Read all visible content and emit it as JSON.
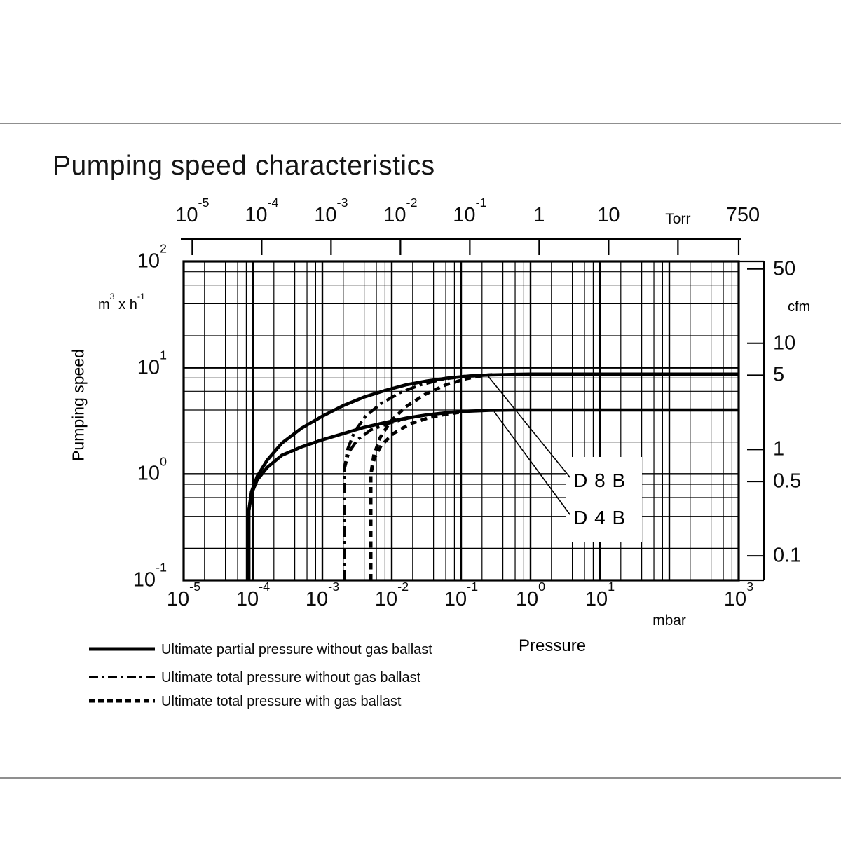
{
  "title": "Pumping speed characteristics",
  "chart_data": {
    "type": "line",
    "title": "Pumping speed characteristics",
    "grid": {
      "scale": "log-log",
      "minor_multiples": [
        2,
        4,
        6,
        8
      ]
    },
    "x_axis": {
      "label": "Pressure",
      "unit": "mbar",
      "scale": "log",
      "range_mbar": [
        1e-05,
        1000
      ],
      "ticks": [
        {
          "value": 1e-05,
          "label": "10^-5"
        },
        {
          "value": 0.0001,
          "label": "10^-4"
        },
        {
          "value": 0.001,
          "label": "10^-3"
        },
        {
          "value": 0.01,
          "label": "10^-2"
        },
        {
          "value": 0.1,
          "label": "10^-1"
        },
        {
          "value": 1,
          "label": "10^0"
        },
        {
          "value": 10,
          "label": "10^1"
        },
        {
          "value": 100,
          "label": "mbar",
          "is_unit": true
        },
        {
          "value": 1000,
          "label": "10^3"
        }
      ]
    },
    "x_axis_top": {
      "unit": "Torr",
      "scale": "log",
      "mbar_per_torr": 1.3332,
      "ticks": [
        {
          "value": 1e-05,
          "label": "10^-5"
        },
        {
          "value": 0.0001,
          "label": "10^-4"
        },
        {
          "value": 0.001,
          "label": "10^-3"
        },
        {
          "value": 0.01,
          "label": "10^-2"
        },
        {
          "value": 0.1,
          "label": "10^-1"
        },
        {
          "value": 1,
          "label": "1"
        },
        {
          "value": 10,
          "label": "10"
        },
        {
          "value": 100,
          "label": "Torr",
          "is_unit": true
        },
        {
          "value": 750,
          "label": "750",
          "dx": 6
        }
      ]
    },
    "y_axis": {
      "label": "Pumping speed",
      "unit": "m^3 x h^-1",
      "scale": "log",
      "range_m3h": [
        0.1,
        100
      ],
      "ticks": [
        {
          "value": 100,
          "label": "10^2"
        },
        {
          "value": 10,
          "label": "10^1"
        },
        {
          "value": 1,
          "label": "10^0"
        },
        {
          "value": 0.1,
          "label": "10^-1"
        }
      ]
    },
    "y_axis_right": {
      "unit": "cfm",
      "m3h_per_cfm": 1.699,
      "ticks": [
        {
          "value": 50,
          "label": "50"
        },
        {
          "value": 10,
          "label": "10"
        },
        {
          "value": 5,
          "label": "5"
        },
        {
          "value": 1,
          "label": "1"
        },
        {
          "value": 0.5,
          "label": "0.5"
        },
        {
          "value": 0.1,
          "label": "0.1"
        }
      ]
    },
    "series": [
      {
        "name": "D 8 B ultimate partial pressure without gas ballast",
        "pump": "D 8 B",
        "style": "solid",
        "points": [
          [
            8.7e-05,
            0.1
          ],
          [
            8.7e-05,
            0.45
          ],
          [
            9.5e-05,
            0.68
          ],
          [
            0.000115,
            0.95
          ],
          [
            0.00016,
            1.35
          ],
          [
            0.00026,
            1.95
          ],
          [
            0.0005,
            2.7
          ],
          [
            0.001,
            3.5
          ],
          [
            0.002,
            4.4
          ],
          [
            0.004,
            5.3
          ],
          [
            0.008,
            6.1
          ],
          [
            0.016,
            6.9
          ],
          [
            0.032,
            7.5
          ],
          [
            0.064,
            8.0
          ],
          [
            0.13,
            8.35
          ],
          [
            0.26,
            8.55
          ],
          [
            0.6,
            8.65
          ],
          [
            1,
            8.7
          ],
          [
            1000,
            8.7
          ]
        ]
      },
      {
        "name": "D 4 B ultimate partial pressure without gas ballast",
        "pump": "D 4 B",
        "style": "solid",
        "points": [
          [
            8.7e-05,
            0.1
          ],
          [
            8.7e-05,
            0.45
          ],
          [
            9.5e-05,
            0.65
          ],
          [
            0.000115,
            0.88
          ],
          [
            0.00016,
            1.15
          ],
          [
            0.00026,
            1.5
          ],
          [
            0.0005,
            1.8
          ],
          [
            0.001,
            2.1
          ],
          [
            0.002,
            2.4
          ],
          [
            0.004,
            2.75
          ],
          [
            0.008,
            3.05
          ],
          [
            0.016,
            3.35
          ],
          [
            0.032,
            3.6
          ],
          [
            0.064,
            3.78
          ],
          [
            0.13,
            3.9
          ],
          [
            0.26,
            3.97
          ],
          [
            0.6,
            4.0
          ],
          [
            1,
            4.0
          ],
          [
            1000,
            4.0
          ]
        ]
      },
      {
        "name": "D 8 B ultimate total pressure without gas ballast",
        "pump": "D 8 B",
        "style": "dashdot",
        "points": [
          [
            0.0021,
            0.1
          ],
          [
            0.0021,
            1.15
          ],
          [
            0.0023,
            1.7
          ],
          [
            0.0029,
            2.5
          ],
          [
            0.0042,
            3.5
          ],
          [
            0.007,
            4.6
          ],
          [
            0.013,
            5.8
          ],
          [
            0.026,
            6.9
          ],
          [
            0.055,
            7.8
          ],
          [
            0.11,
            8.3
          ],
          [
            0.16,
            8.45
          ]
        ]
      },
      {
        "name": "D 4 B ultimate total pressure without gas ballast",
        "pump": "D 4 B",
        "style": "dashdot",
        "points": [
          [
            0.0021,
            0.1
          ],
          [
            0.0021,
            1.15
          ],
          [
            0.0024,
            1.6
          ],
          [
            0.0032,
            2.1
          ],
          [
            0.005,
            2.6
          ],
          [
            0.009,
            3.0
          ],
          [
            0.017,
            3.35
          ],
          [
            0.03,
            3.58
          ],
          [
            0.045,
            3.68
          ]
        ]
      },
      {
        "name": "D 8 B ultimate total pressure with gas ballast",
        "pump": "D 8 B",
        "style": "dashed",
        "points": [
          [
            0.005,
            0.1
          ],
          [
            0.005,
            1.0
          ],
          [
            0.0055,
            1.5
          ],
          [
            0.0068,
            2.2
          ],
          [
            0.0095,
            3.1
          ],
          [
            0.016,
            4.3
          ],
          [
            0.03,
            5.6
          ],
          [
            0.06,
            6.9
          ],
          [
            0.12,
            7.9
          ],
          [
            0.22,
            8.5
          ],
          [
            0.3,
            8.62
          ]
        ]
      },
      {
        "name": "D 4 B ultimate total pressure with gas ballast",
        "pump": "D 4 B",
        "style": "dashed",
        "points": [
          [
            0.005,
            0.1
          ],
          [
            0.005,
            1.0
          ],
          [
            0.0056,
            1.4
          ],
          [
            0.007,
            1.85
          ],
          [
            0.0105,
            2.4
          ],
          [
            0.018,
            2.95
          ],
          [
            0.035,
            3.4
          ],
          [
            0.065,
            3.68
          ],
          [
            0.1,
            3.82
          ]
        ]
      }
    ],
    "annotations": [
      {
        "text": "D 8 B",
        "line_from": [
          0.24,
          8.45
        ],
        "line_to": [
          3.7,
          0.93
        ],
        "label_at": [
          4.15,
          0.86
        ]
      },
      {
        "text": "D 4 B",
        "line_from": [
          0.3,
          3.85
        ],
        "line_to": [
          3.7,
          0.415
        ],
        "label_at": [
          4.15,
          0.385
        ]
      }
    ],
    "legend_position": "bottom-left"
  },
  "legend": {
    "items": [
      {
        "style": "solid",
        "label": "Ultimate partial pressure without gas ballast"
      },
      {
        "style": "dashdot",
        "label": "Ultimate total pressure without gas ballast"
      },
      {
        "style": "dashed",
        "label": "Ultimate total pressure with gas ballast"
      }
    ]
  },
  "colors": {
    "ink": "#000000",
    "divider": "#8f8f8f",
    "background": "#ffffff"
  }
}
